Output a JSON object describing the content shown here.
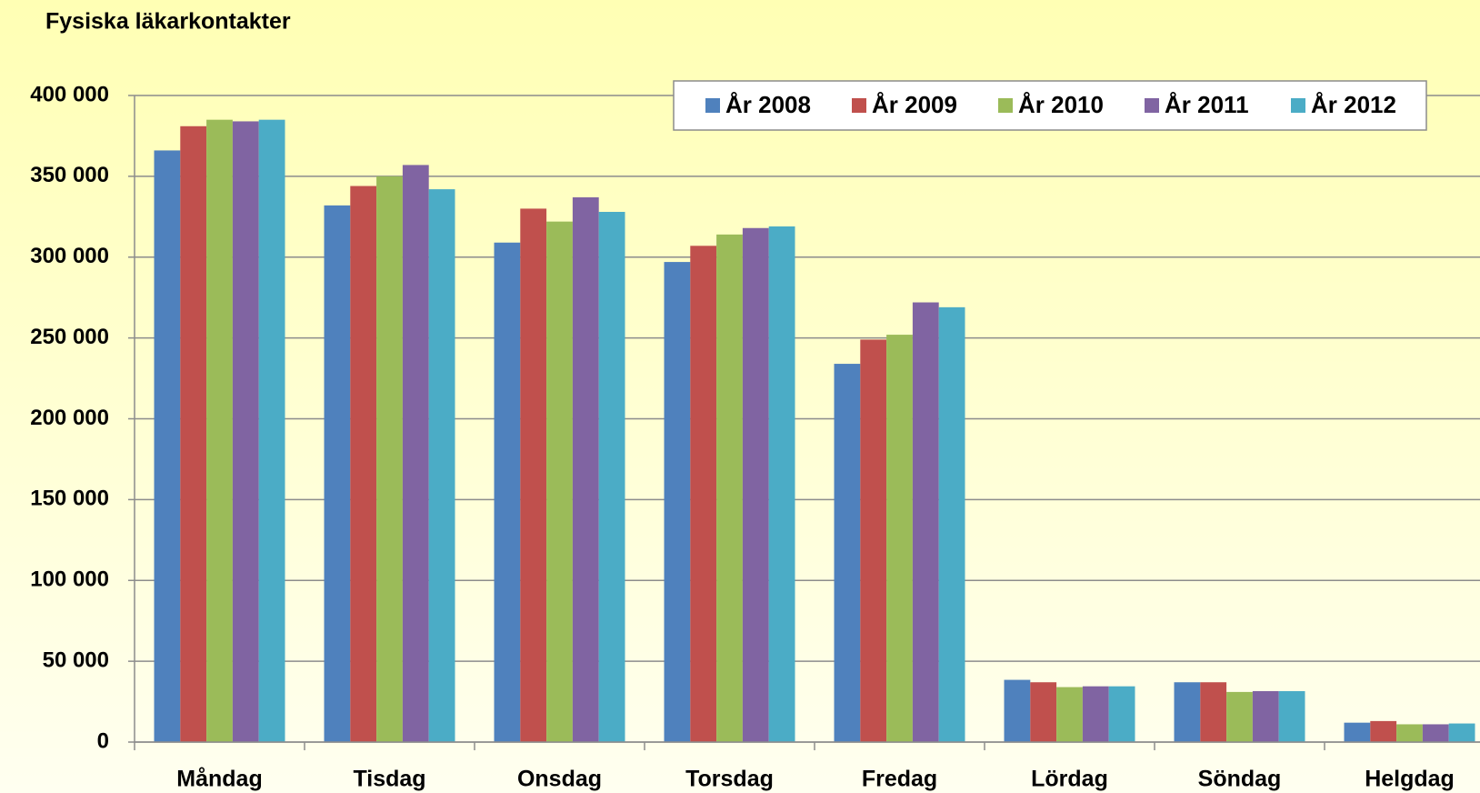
{
  "chart_data": {
    "type": "bar",
    "title": "Fysiska läkarkontakter",
    "categories": [
      "Måndag",
      "Tisdag",
      "Onsdag",
      "Torsdag",
      "Fredag",
      "Lördag",
      "Söndag",
      "Helgdag"
    ],
    "series": [
      {
        "name": "År 2008",
        "color": "#4f81bd",
        "values": [
          366000,
          332000,
          309000,
          297000,
          234000,
          38500,
          37000,
          12000
        ]
      },
      {
        "name": "År 2009",
        "color": "#c0504d",
        "values": [
          381000,
          344000,
          330000,
          307000,
          249000,
          37000,
          37000,
          13000
        ]
      },
      {
        "name": "År 2010",
        "color": "#9bbb59",
        "values": [
          385000,
          350000,
          322000,
          314000,
          252000,
          34000,
          31000,
          11000
        ]
      },
      {
        "name": "År 2011",
        "color": "#8064a2",
        "values": [
          384000,
          357000,
          337000,
          318000,
          272000,
          34500,
          31500,
          11000
        ]
      },
      {
        "name": "År 2012",
        "color": "#4bacc6",
        "values": [
          385000,
          342000,
          328000,
          319000,
          269000,
          34500,
          31500,
          11500
        ]
      }
    ],
    "ylim": [
      0,
      400000
    ],
    "yticks": [
      0,
      {
        "value": 50000,
        "label": "50 000"
      },
      {
        "value": 100000,
        "label": "100 000"
      },
      {
        "value": 150000,
        "label": "150 000"
      },
      {
        "value": 200000,
        "label": "200 000"
      },
      {
        "value": 250000,
        "label": "250 000"
      },
      {
        "value": 300000,
        "label": "300 000"
      },
      {
        "value": 350000,
        "label": "350 000"
      },
      {
        "value": 400000,
        "label": "400 000"
      }
    ],
    "grid": true,
    "legend": "top-right"
  }
}
